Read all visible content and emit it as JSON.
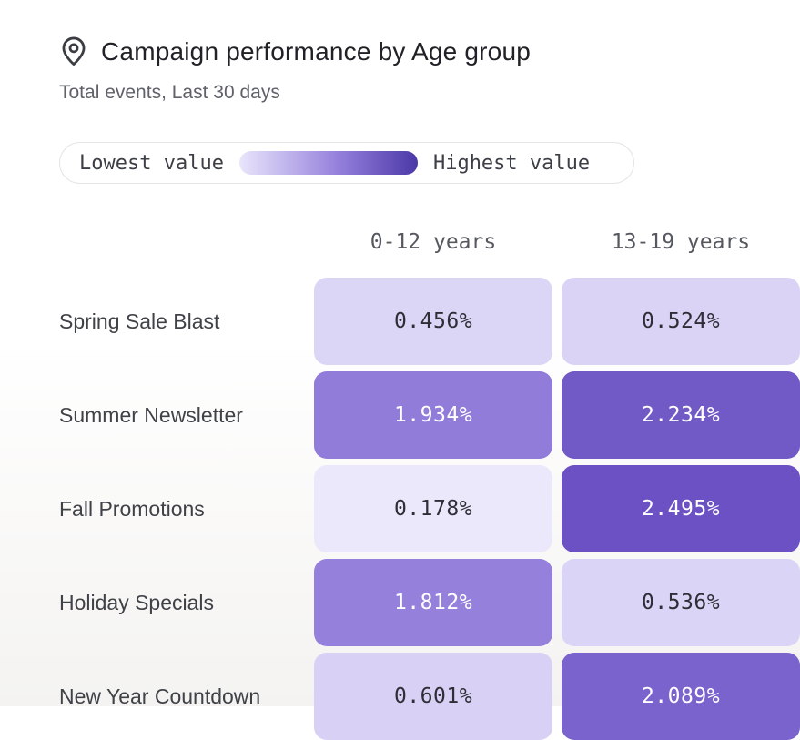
{
  "header": {
    "title": "Campaign performance by Age group",
    "subtitle": "Total events, Last 30 days",
    "icon": "location-pin-icon",
    "icon_color": "#3a3d42"
  },
  "legend": {
    "low_label": "Lowest value",
    "high_label": "Highest value",
    "gradient_start": "#e9e5fb",
    "gradient_mid": "#9581dc",
    "gradient_end": "#4b38a7"
  },
  "chart_data": {
    "type": "heatmap",
    "title": "Campaign performance by Age group",
    "subtitle": "Total events, Last 30 days",
    "metric": "Total events",
    "period": "Last 30 days",
    "columns": [
      "0-12 years",
      "13-19 years"
    ],
    "rows": [
      "Spring Sale Blast",
      "Summer Newsletter",
      "Fall Promotions",
      "Holiday Specials",
      "New Year Countdown"
    ],
    "values": [
      [
        0.456,
        0.524
      ],
      [
        1.934,
        2.234
      ],
      [
        0.178,
        2.495
      ],
      [
        1.812,
        0.536
      ],
      [
        0.601,
        2.089
      ]
    ],
    "value_range": [
      0.178,
      2.495
    ],
    "unit": "%",
    "legend_position": "top",
    "cells": [
      [
        {
          "label": "0.456%",
          "bg": "#dbd5f6",
          "fg": "#2e2e36"
        },
        {
          "label": "0.524%",
          "bg": "#dad3f6",
          "fg": "#2e2e36"
        }
      ],
      [
        {
          "label": "1.934%",
          "bg": "#927cda",
          "fg": "#ffffff"
        },
        {
          "label": "2.234%",
          "bg": "#7159c6",
          "fg": "#ffffff"
        }
      ],
      [
        {
          "label": "0.178%",
          "bg": "#ece8fb",
          "fg": "#2e2e36"
        },
        {
          "label": "2.495%",
          "bg": "#6b51c3",
          "fg": "#ffffff"
        }
      ],
      [
        {
          "label": "1.812%",
          "bg": "#9580db",
          "fg": "#ffffff"
        },
        {
          "label": "0.536%",
          "bg": "#dad4f6",
          "fg": "#2e2e36"
        }
      ],
      [
        {
          "label": "0.601%",
          "bg": "#d8d1f5",
          "fg": "#2e2e36"
        },
        {
          "label": "2.089%",
          "bg": "#7b63cd",
          "fg": "#ffffff"
        }
      ]
    ]
  }
}
